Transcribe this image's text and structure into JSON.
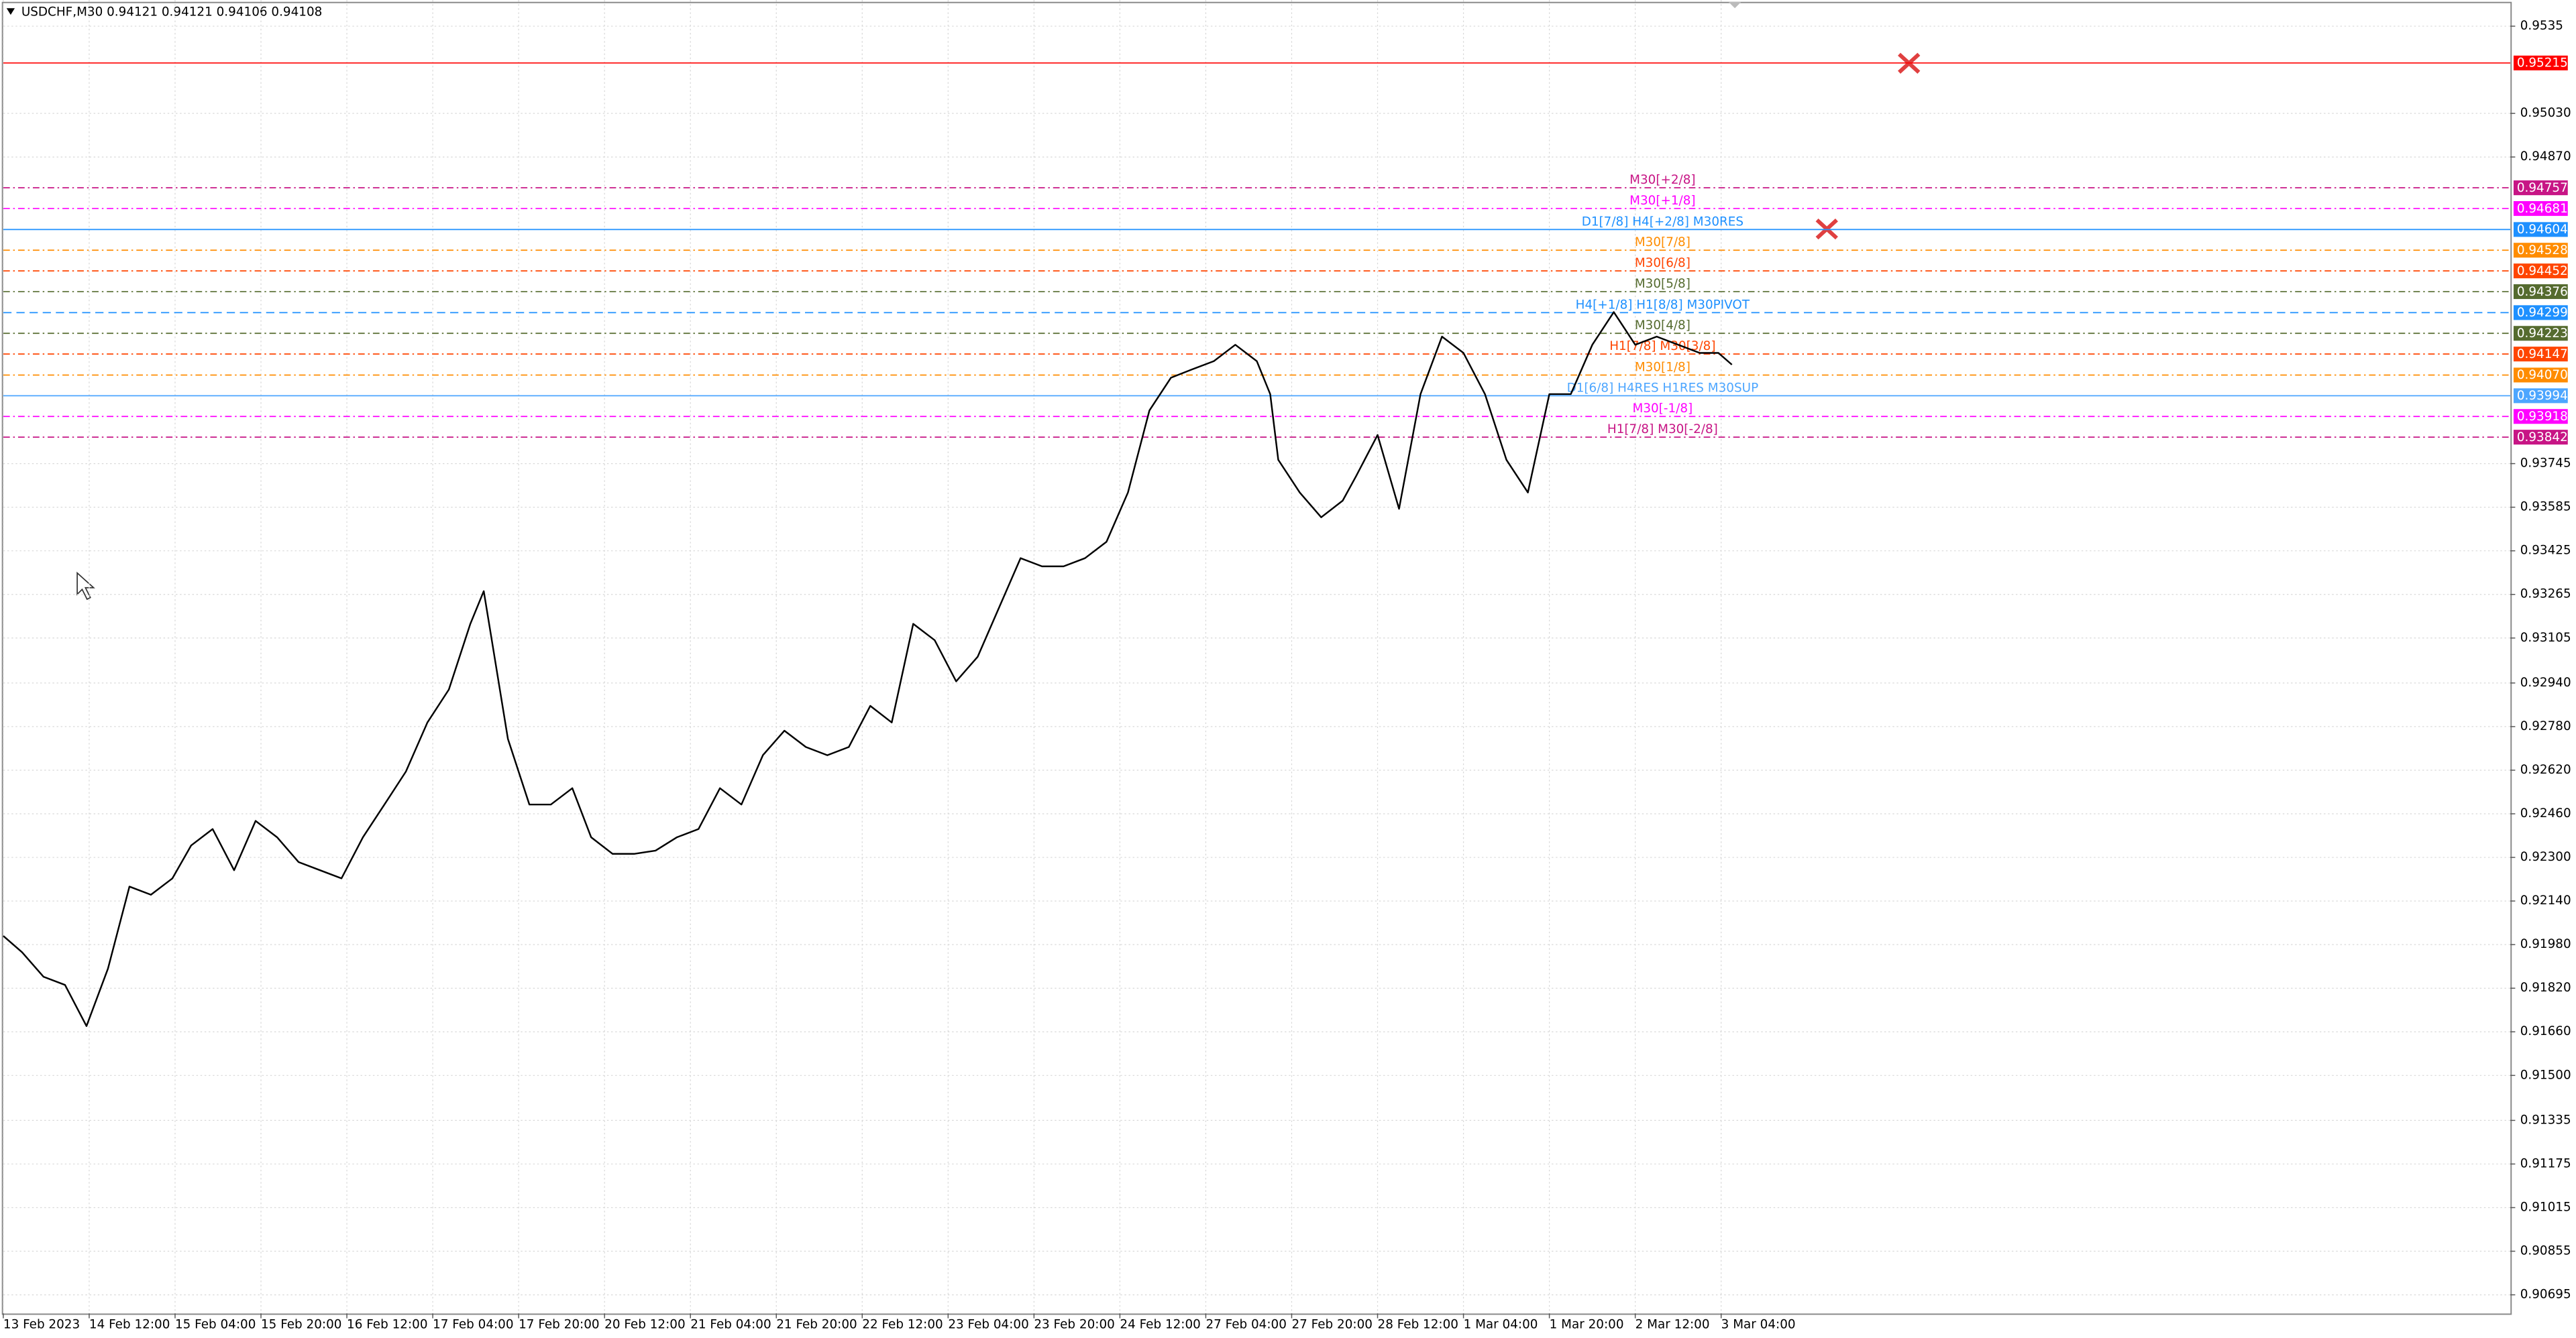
{
  "chart_data": {
    "type": "line",
    "title": "USDCHF,M30  0.94121 0.94121 0.94106 0.94108",
    "x": [
      0,
      7,
      15,
      23,
      31,
      39,
      47,
      55,
      63,
      70,
      78,
      86,
      94,
      102,
      110,
      118,
      126,
      134,
      142,
      150,
      158,
      166,
      174,
      179,
      182,
      188,
      196,
      204,
      212,
      219,
      227,
      235,
      243,
      251,
      259,
      267,
      275,
      283,
      291,
      299,
      307,
      315,
      323,
      331,
      339,
      347,
      355,
      363,
      371,
      379,
      387,
      395,
      403,
      411,
      419,
      427,
      435,
      443,
      451,
      459,
      467,
      472,
      475,
      483,
      491,
      499,
      504,
      512,
      520,
      528,
      536,
      544,
      552,
      560,
      568,
      576,
      584,
      592,
      600,
      608,
      616,
      624,
      632,
      639,
      644
    ],
    "series": [
      {
        "name": "USDCHF",
        "color": "#000000",
        "values": [
          0.92012,
          0.91952,
          0.91862,
          0.91832,
          0.91681,
          0.91892,
          0.92193,
          0.92163,
          0.92223,
          0.92344,
          0.92404,
          0.92253,
          0.92434,
          0.92374,
          0.92283,
          0.92253,
          0.92223,
          0.92374,
          0.92494,
          0.92615,
          0.92795,
          0.92916,
          0.93157,
          0.93277,
          0.93097,
          0.92735,
          0.92494,
          0.92494,
          0.92554,
          0.92374,
          0.92313,
          0.92313,
          0.92325,
          0.92374,
          0.92404,
          0.92554,
          0.92494,
          0.92675,
          0.92765,
          0.92705,
          0.92675,
          0.92705,
          0.92856,
          0.92795,
          0.93157,
          0.93097,
          0.92946,
          0.93036,
          0.93217,
          0.93398,
          0.93368,
          0.93368,
          0.93398,
          0.93458,
          0.93639,
          0.9394,
          0.9406,
          0.94091,
          0.94121,
          0.94181,
          0.94121,
          0.94,
          0.93759,
          0.93639,
          0.93548,
          0.93609,
          0.93699,
          0.9385,
          0.93579,
          0.94,
          0.94211,
          0.94151,
          0.94,
          0.93759,
          0.93639,
          0.94,
          0.94,
          0.94181,
          0.94301,
          0.94181,
          0.94211,
          0.94181,
          0.94151,
          0.94151,
          0.94108
        ]
      }
    ],
    "xlim": [
      0,
      934
    ],
    "xticks": [
      {
        "value": 0,
        "label": "13 Feb 2023"
      },
      {
        "value": 32,
        "label": "14 Feb 12:00"
      },
      {
        "value": 64,
        "label": "15 Feb 04:00"
      },
      {
        "value": 96,
        "label": "15 Feb 20:00"
      },
      {
        "value": 128,
        "label": "16 Feb 12:00"
      },
      {
        "value": 160,
        "label": "17 Feb 04:00"
      },
      {
        "value": 192,
        "label": "17 Feb 20:00"
      },
      {
        "value": 224,
        "label": "20 Feb 12:00"
      },
      {
        "value": 256,
        "label": "21 Feb 04:00"
      },
      {
        "value": 288,
        "label": "21 Feb 20:00"
      },
      {
        "value": 320,
        "label": "22 Feb 12:00"
      },
      {
        "value": 352,
        "label": "23 Feb 04:00"
      },
      {
        "value": 384,
        "label": "23 Feb 20:00"
      },
      {
        "value": 416,
        "label": "24 Feb 12:00"
      },
      {
        "value": 448,
        "label": "27 Feb 04:00"
      },
      {
        "value": 480,
        "label": "27 Feb 20:00"
      },
      {
        "value": 512,
        "label": "28 Feb 12:00"
      },
      {
        "value": 544,
        "label": "1 Mar 04:00"
      },
      {
        "value": 576,
        "label": "1 Mar 20:00"
      },
      {
        "value": 608,
        "label": "2 Mar 12:00"
      },
      {
        "value": 640,
        "label": "3 Mar 04:00"
      }
    ],
    "ylim": [
      0.90627,
      0.95446
    ],
    "yticks": [
      0.9535,
      {
        "value": 0.9503,
        "label": "0.95030"
      },
      {
        "value": 0.9487,
        "label": "0.94870"
      },
      0.93745,
      0.93585,
      0.93425,
      0.93265,
      0.93105,
      {
        "value": 0.9294,
        "label": "0.92940"
      },
      {
        "value": 0.9278,
        "label": "0.92780"
      },
      {
        "value": 0.9262,
        "label": "0.92620"
      },
      {
        "value": 0.9246,
        "label": "0.92460"
      },
      {
        "value": 0.923,
        "label": "0.92300"
      },
      {
        "value": 0.9214,
        "label": "0.92140"
      },
      {
        "value": 0.9198,
        "label": "0.91980"
      },
      {
        "value": 0.9182,
        "label": "0.91820"
      },
      {
        "value": 0.9166,
        "label": "0.91660"
      },
      {
        "value": 0.915,
        "label": "0.91500"
      },
      0.91335,
      0.91175,
      0.91015,
      0.90855,
      0.90695
    ],
    "grid": true,
    "levels": [
      {
        "value": 0.95215,
        "color": "#ff0000",
        "style": "solid"
      },
      {
        "value": 0.94757,
        "label": "M30[+2/8]",
        "color": "#c71585",
        "style": "dashdot"
      },
      {
        "value": 0.94681,
        "label": "M30[+1/8]",
        "color": "#ff00ff",
        "style": "dashdot"
      },
      {
        "value": 0.94604,
        "label": "D1[7/8] H4[+2/8] M30RES",
        "color": "#1e90ff",
        "style": "solid"
      },
      {
        "value": 0.94528,
        "label": "M30[7/8]",
        "color": "#ff8c00",
        "style": "dashdot"
      },
      {
        "value": 0.94452,
        "label": "M30[6/8]",
        "color": "#ff4500",
        "style": "dashdot"
      },
      {
        "value": 0.94376,
        "label": "M30[5/8]",
        "color": "#556b2f",
        "style": "dashdot"
      },
      {
        "value": 0.94299,
        "label": "H4[+1/8] H1[8/8] M30PIVOT",
        "color": "#1e90ff",
        "style": "dashed"
      },
      {
        "value": 0.94223,
        "label": "M30[4/8]",
        "color": "#556b2f",
        "style": "dashdot"
      },
      {
        "value": 0.94147,
        "label": "H1[7/8] M30[3/8]",
        "color": "#ff4500",
        "style": "dashdot"
      },
      {
        "value": 0.9407,
        "value_label": "0.94070",
        "label": "M30[1/8]",
        "color": "#ff8c00",
        "style": "dashdot"
      },
      {
        "value": 0.93994,
        "label": "D1[6/8] H4RES H1RES M30SUP",
        "color": "#4da6ff",
        "style": "solid"
      },
      {
        "value": 0.93918,
        "label": "M30[-1/8]",
        "color": "#ff00ff",
        "style": "dashdot"
      },
      {
        "value": 0.93842,
        "label": "H1[7/8] M30[-2/8]",
        "color": "#c71585",
        "style": "dashdot"
      }
    ]
  }
}
